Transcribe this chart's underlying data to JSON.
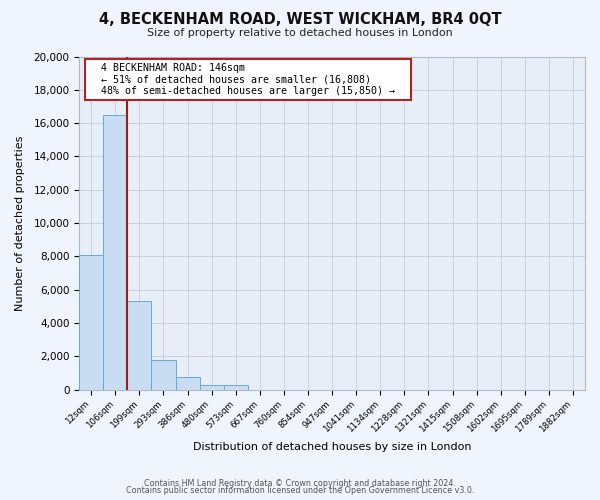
{
  "title": "4, BECKENHAM ROAD, WEST WICKHAM, BR4 0QT",
  "subtitle": "Size of property relative to detached houses in London",
  "xlabel": "Distribution of detached houses by size in London",
  "ylabel": "Number of detached properties",
  "bar_labels": [
    "12sqm",
    "106sqm",
    "199sqm",
    "293sqm",
    "386sqm",
    "480sqm",
    "573sqm",
    "667sqm",
    "760sqm",
    "854sqm",
    "947sqm",
    "1041sqm",
    "1134sqm",
    "1228sqm",
    "1321sqm",
    "1415sqm",
    "1508sqm",
    "1602sqm",
    "1695sqm",
    "1789sqm",
    "1882sqm"
  ],
  "bar_heights": [
    8100,
    16500,
    5300,
    1750,
    780,
    300,
    250,
    0,
    0,
    0,
    0,
    0,
    0,
    0,
    0,
    0,
    0,
    0,
    0,
    0,
    0
  ],
  "bar_color": "#c9ddf2",
  "bar_edge_color": "#6aaad4",
  "ylim": [
    0,
    20000
  ],
  "yticks": [
    0,
    2000,
    4000,
    6000,
    8000,
    10000,
    12000,
    14000,
    16000,
    18000,
    20000
  ],
  "vline_x": 1.5,
  "vline_color": "#9b1c1c",
  "annotation_title": "4 BECKENHAM ROAD: 146sqm",
  "annotation_line1": "← 51% of detached houses are smaller (16,808)",
  "annotation_line2": "48% of semi-detached houses are larger (15,850) →",
  "annotation_box_facecolor": "#ffffff",
  "annotation_box_edgecolor": "#b22222",
  "footer1": "Contains HM Land Registry data © Crown copyright and database right 2024.",
  "footer2": "Contains public sector information licensed under the Open Government Licence v3.0.",
  "fig_facecolor": "#f0f4fc",
  "plot_facecolor": "#e8eef8",
  "grid_color": "#c8d0dc",
  "spine_color": "#b0b8c8"
}
